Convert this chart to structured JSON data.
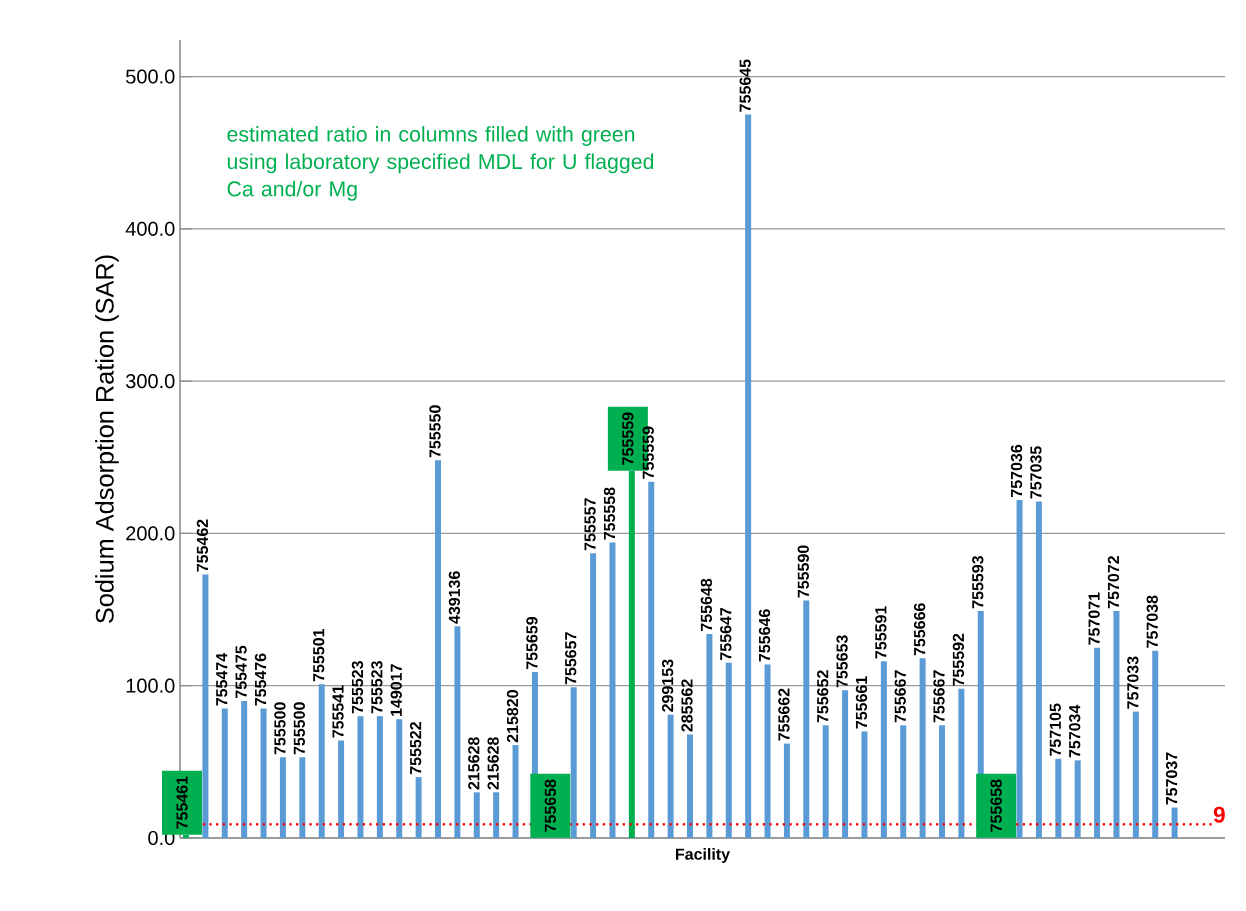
{
  "chart_data": {
    "type": "bar",
    "xlabel": "Facility",
    "ylabel": "Sodium Adsorption Ration (SAR)",
    "categories": [
      "755461",
      "755462",
      "755474",
      "755475",
      "755476",
      "755500",
      "755500",
      "755501",
      "755541",
      "755523",
      "755523",
      "149017",
      "755522",
      "755550",
      "439136",
      "215628",
      "215628",
      "215820",
      "755659",
      "755658",
      "755657",
      "755557",
      "755558",
      "755559",
      "755559",
      "299153",
      "285562",
      "755648",
      "755647",
      "755645",
      "755646",
      "755662",
      "755590",
      "755652",
      "755653",
      "755661",
      "755591",
      "755667",
      "755666",
      "755667",
      "755592",
      "755593",
      "755658",
      "757036",
      "757035",
      "757105",
      "757034",
      "757071",
      "757072",
      "757033",
      "757038",
      "757037"
    ],
    "series": [
      {
        "color": "#5b9bd5",
        "values": [
          2,
          173,
          85,
          90,
          85,
          53,
          53,
          101,
          64,
          80,
          80,
          78,
          40,
          248,
          139,
          30,
          30,
          61,
          109,
          null,
          99,
          187,
          194,
          241,
          234,
          81,
          68,
          134,
          115,
          475,
          114,
          62,
          156,
          74,
          97,
          70,
          116,
          74,
          118,
          74,
          98,
          149,
          null,
          222,
          221,
          52,
          51,
          125,
          149,
          83,
          123,
          20
        ],
        "colors": [
          "#00b050",
          "#5b9bd5",
          "#5b9bd5",
          "#5b9bd5",
          "#5b9bd5",
          "#5b9bd5",
          "#5b9bd5",
          "#5b9bd5",
          "#5b9bd5",
          "#5b9bd5",
          "#5b9bd5",
          "#5b9bd5",
          "#5b9bd5",
          "#5b9bd5",
          "#5b9bd5",
          "#5b9bd5",
          "#5b9bd5",
          "#5b9bd5",
          "#5b9bd5",
          "#00b050",
          "#5b9bd5",
          "#5b9bd5",
          "#5b9bd5",
          "#00b050",
          "#5b9bd5",
          "#5b9bd5",
          "#5b9bd5",
          "#5b9bd5",
          "#5b9bd5",
          "#5b9bd5",
          "#5b9bd5",
          "#5b9bd5",
          "#5b9bd5",
          "#5b9bd5",
          "#5b9bd5",
          "#5b9bd5",
          "#5b9bd5",
          "#5b9bd5",
          "#5b9bd5",
          "#5b9bd5",
          "#5b9bd5",
          "#5b9bd5",
          "#00b050",
          "#5b9bd5",
          "#5b9bd5",
          "#5b9bd5",
          "#5b9bd5",
          "#5b9bd5",
          "#5b9bd5",
          "#5b9bd5",
          "#5b9bd5",
          "#5b9bd5"
        ]
      }
    ],
    "ylim": [
      0,
      524
    ],
    "yticks": [
      {
        "value": 0,
        "label": "0.0"
      },
      {
        "value": 100,
        "label": "100.0"
      },
      {
        "value": 200,
        "label": "200.0"
      },
      {
        "value": 300,
        "label": "300.0"
      },
      {
        "value": 400,
        "label": "400.0"
      },
      {
        "value": 500,
        "label": "500.0"
      }
    ],
    "grid": "y",
    "ref_lines": [
      {
        "axis": "y",
        "value": 9,
        "label": "9",
        "color": "#ff0000",
        "line_style": "dotted"
      }
    ],
    "annotations": [
      "estimated ratio in columns filled with green using laboratory specified MDL for U flagged Ca and/or Mg"
    ]
  }
}
